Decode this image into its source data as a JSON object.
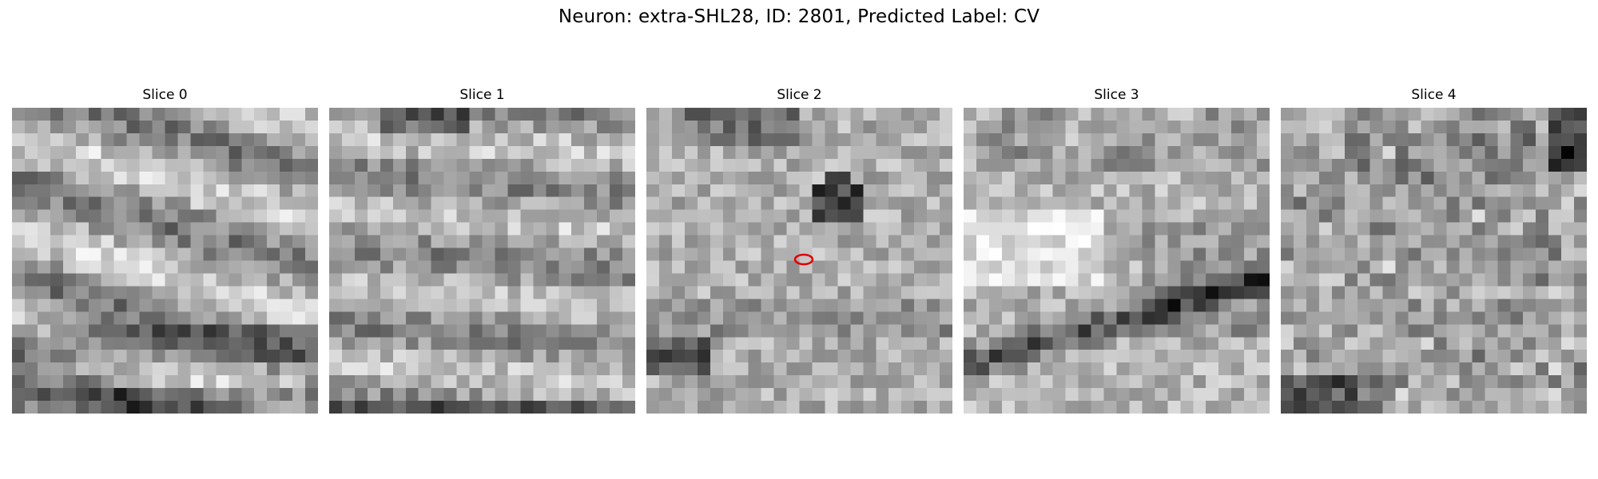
{
  "figure": {
    "title": "Neuron: extra-SHL28, ID: 2801, Predicted Label: CV"
  },
  "slices": [
    {
      "title": "Slice 0",
      "seed": 11,
      "pattern": "diagonal-bands"
    },
    {
      "title": "Slice 1",
      "seed": 23,
      "pattern": "textured-bands"
    },
    {
      "title": "Slice 2",
      "seed": 37,
      "pattern": "noisy-center",
      "marker": true
    },
    {
      "title": "Slice 3",
      "seed": 41,
      "pattern": "bright-left-dark-bottom"
    },
    {
      "title": "Slice 4",
      "seed": 59,
      "pattern": "noisy-speckle"
    }
  ],
  "marker": {
    "shape": "ellipse",
    "color": "#e00000",
    "slice": "Slice 2"
  },
  "colormap": "gray"
}
